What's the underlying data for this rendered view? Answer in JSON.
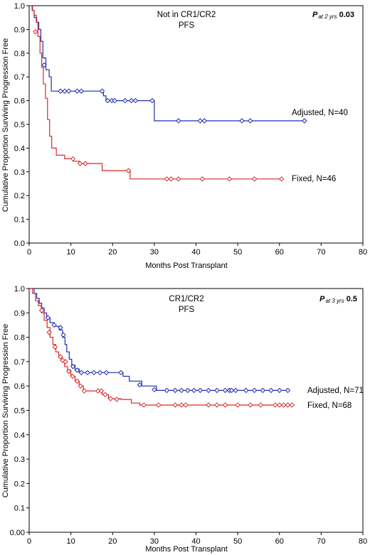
{
  "chart_data": [
    {
      "type": "line",
      "step": true,
      "title": "Not in CR1/CR2",
      "subtitle": "PFS",
      "pvalue": {
        "symbol": "P",
        "subscript": "at 2 yrs",
        "value": "0.03"
      },
      "xlabel": "Months Post Transplant",
      "ylabel": "Cumulative Proportion Surviving Progression Free",
      "xlim": [
        0,
        80
      ],
      "ylim": [
        0,
        1.0
      ],
      "xticks": [
        0,
        10,
        20,
        30,
        40,
        50,
        60,
        70,
        80
      ],
      "yticks": [
        0.0,
        0.1,
        0.2,
        0.3,
        0.4,
        0.5,
        0.6,
        0.7,
        0.8,
        0.9,
        1.0
      ],
      "ytick_labels": [
        "0.0",
        "0.1",
        "0.2",
        "0.3",
        "0.4",
        "0.5",
        "0.6",
        "0.7",
        "0.8",
        "0.9",
        "1.0"
      ],
      "grid": false,
      "series": [
        {
          "name": "Adjusted, N=40",
          "color": "#1f2fb0",
          "steps": [
            [
              0,
              1.0
            ],
            [
              0.8,
              0.98
            ],
            [
              1.2,
              0.95
            ],
            [
              1.8,
              0.93
            ],
            [
              2.3,
              0.9
            ],
            [
              2.8,
              0.85
            ],
            [
              3.3,
              0.78
            ],
            [
              4.0,
              0.73
            ],
            [
              4.8,
              0.7
            ],
            [
              5.3,
              0.64
            ],
            [
              17.8,
              0.62
            ],
            [
              18.4,
              0.6
            ],
            [
              24.0,
              0.6
            ],
            [
              30.0,
              0.515
            ],
            [
              66,
              0.515
            ]
          ],
          "censored": [
            [
              3.6,
              0.75
            ],
            [
              7.5,
              0.64
            ],
            [
              8.5,
              0.64
            ],
            [
              9.5,
              0.64
            ],
            [
              11.5,
              0.64
            ],
            [
              12.5,
              0.64
            ],
            [
              17.5,
              0.64
            ],
            [
              18.8,
              0.6
            ],
            [
              19.8,
              0.6
            ],
            [
              20.5,
              0.6
            ],
            [
              23.0,
              0.6
            ],
            [
              24.5,
              0.6
            ],
            [
              25.5,
              0.6
            ],
            [
              29.5,
              0.6
            ],
            [
              35.8,
              0.515
            ],
            [
              41.0,
              0.515
            ],
            [
              42.0,
              0.515
            ],
            [
              51.0,
              0.515
            ],
            [
              53.0,
              0.515
            ],
            [
              66.0,
              0.515
            ]
          ]
        },
        {
          "name": "Fixed, N=46",
          "color": "#d42a2a",
          "steps": [
            [
              0,
              1.0
            ],
            [
              0.7,
              0.98
            ],
            [
              1.2,
              0.96
            ],
            [
              1.7,
              0.93
            ],
            [
              2.1,
              0.87
            ],
            [
              2.6,
              0.8
            ],
            [
              3.0,
              0.74
            ],
            [
              3.4,
              0.67
            ],
            [
              3.9,
              0.61
            ],
            [
              4.4,
              0.52
            ],
            [
              4.9,
              0.45
            ],
            [
              5.4,
              0.4
            ],
            [
              6.5,
              0.37
            ],
            [
              8.5,
              0.355
            ],
            [
              10.5,
              0.345
            ],
            [
              12.0,
              0.335
            ],
            [
              17.5,
              0.305
            ],
            [
              24.2,
              0.27
            ],
            [
              60.5,
              0.27
            ]
          ],
          "censored": [
            [
              1.5,
              0.89
            ],
            [
              10.5,
              0.355
            ],
            [
              12.2,
              0.335
            ],
            [
              13.5,
              0.335
            ],
            [
              23.8,
              0.305
            ],
            [
              33.0,
              0.27
            ],
            [
              34.0,
              0.27
            ],
            [
              35.8,
              0.27
            ],
            [
              41.5,
              0.27
            ],
            [
              48.0,
              0.27
            ],
            [
              54.0,
              0.27
            ],
            [
              60.5,
              0.27
            ]
          ]
        }
      ]
    },
    {
      "type": "line",
      "step": true,
      "title": "CR1/CR2",
      "subtitle": "PFS",
      "pvalue": {
        "symbol": "P",
        "subscript": "at 3 yrs",
        "value": "0.5"
      },
      "xlabel": "Months Post Transplant",
      "ylabel": "Cumulative Proportion Surviving Progression Free",
      "xlim": [
        0,
        80
      ],
      "ylim": [
        0,
        1.0
      ],
      "xticks": [
        0,
        10,
        20,
        30,
        40,
        50,
        60,
        70,
        80
      ],
      "yticks": [
        0.0,
        0.1,
        0.2,
        0.3,
        0.4,
        0.5,
        0.6,
        0.7,
        0.8,
        0.9,
        1.0
      ],
      "ytick_labels": [
        "0.00",
        "0.1",
        "0.2",
        "0.3",
        "0.4",
        "0.5",
        "0.6",
        "0.7",
        "0.8",
        "0.9",
        "1.0"
      ],
      "grid": false,
      "series": [
        {
          "name": "Adjusted, N=71",
          "color": "#1f2fb0",
          "steps": [
            [
              0,
              1.0
            ],
            [
              1.2,
              0.98
            ],
            [
              1.8,
              0.96
            ],
            [
              2.4,
              0.94
            ],
            [
              3.0,
              0.92
            ],
            [
              3.6,
              0.9
            ],
            [
              4.2,
              0.88
            ],
            [
              5.0,
              0.86
            ],
            [
              6.0,
              0.845
            ],
            [
              7.2,
              0.83
            ],
            [
              8.0,
              0.8
            ],
            [
              8.6,
              0.77
            ],
            [
              9.0,
              0.74
            ],
            [
              9.6,
              0.71
            ],
            [
              10.2,
              0.685
            ],
            [
              11.0,
              0.67
            ],
            [
              12.0,
              0.655
            ],
            [
              22.5,
              0.64
            ],
            [
              24.0,
              0.62
            ],
            [
              27.0,
              0.6
            ],
            [
              30.5,
              0.582
            ],
            [
              62,
              0.582
            ]
          ],
          "censored": [
            [
              4.5,
              0.88
            ],
            [
              6.0,
              0.85
            ],
            [
              7.5,
              0.84
            ],
            [
              8.2,
              0.81
            ],
            [
              10.5,
              0.68
            ],
            [
              11.5,
              0.665
            ],
            [
              12.5,
              0.655
            ],
            [
              14.0,
              0.655
            ],
            [
              15.5,
              0.655
            ],
            [
              17.0,
              0.655
            ],
            [
              18.5,
              0.655
            ],
            [
              22.0,
              0.655
            ],
            [
              26.5,
              0.605
            ],
            [
              30.0,
              0.585
            ],
            [
              33.0,
              0.582
            ],
            [
              35.0,
              0.582
            ],
            [
              36.5,
              0.582
            ],
            [
              38.0,
              0.582
            ],
            [
              39.5,
              0.582
            ],
            [
              41.0,
              0.582
            ],
            [
              43.0,
              0.582
            ],
            [
              45.0,
              0.582
            ],
            [
              47.0,
              0.582
            ],
            [
              48.0,
              0.582
            ],
            [
              48.5,
              0.582
            ],
            [
              49.5,
              0.582
            ],
            [
              52.0,
              0.582
            ],
            [
              54.0,
              0.582
            ],
            [
              56.0,
              0.582
            ],
            [
              58.0,
              0.582
            ],
            [
              60.0,
              0.582
            ],
            [
              62.0,
              0.582
            ]
          ]
        },
        {
          "name": "Fixed, N=68",
          "color": "#d42a2a",
          "steps": [
            [
              0,
              1.0
            ],
            [
              0.8,
              0.98
            ],
            [
              1.5,
              0.95
            ],
            [
              2.2,
              0.93
            ],
            [
              2.9,
              0.9
            ],
            [
              3.6,
              0.87
            ],
            [
              4.3,
              0.84
            ],
            [
              5.0,
              0.8
            ],
            [
              5.7,
              0.77
            ],
            [
              6.4,
              0.74
            ],
            [
              7.1,
              0.72
            ],
            [
              7.8,
              0.7
            ],
            [
              8.5,
              0.68
            ],
            [
              9.2,
              0.665
            ],
            [
              10.0,
              0.64
            ],
            [
              11.0,
              0.62
            ],
            [
              12.0,
              0.6
            ],
            [
              13.0,
              0.58
            ],
            [
              17.5,
              0.565
            ],
            [
              19.0,
              0.548
            ],
            [
              22.0,
              0.545
            ],
            [
              24.5,
              0.53
            ],
            [
              26.5,
              0.522
            ],
            [
              63,
              0.522
            ]
          ],
          "censored": [
            [
              3.0,
              0.91
            ],
            [
              4.8,
              0.82
            ],
            [
              6.2,
              0.76
            ],
            [
              7.5,
              0.72
            ],
            [
              8.0,
              0.705
            ],
            [
              8.7,
              0.7
            ],
            [
              9.5,
              0.66
            ],
            [
              10.4,
              0.64
            ],
            [
              11.5,
              0.62
            ],
            [
              12.3,
              0.6
            ],
            [
              13.2,
              0.58
            ],
            [
              16.5,
              0.58
            ],
            [
              17.3,
              0.58
            ],
            [
              18.2,
              0.565
            ],
            [
              19.5,
              0.548
            ],
            [
              21.0,
              0.545
            ],
            [
              27.5,
              0.522
            ],
            [
              31.0,
              0.522
            ],
            [
              35.0,
              0.522
            ],
            [
              36.5,
              0.522
            ],
            [
              37.5,
              0.522
            ],
            [
              43.0,
              0.522
            ],
            [
              45.0,
              0.522
            ],
            [
              47.0,
              0.522
            ],
            [
              50.0,
              0.522
            ],
            [
              53.0,
              0.522
            ],
            [
              55.5,
              0.522
            ],
            [
              59.0,
              0.522
            ],
            [
              60.0,
              0.522
            ],
            [
              61.0,
              0.522
            ],
            [
              62.0,
              0.522
            ],
            [
              63.0,
              0.522
            ]
          ]
        }
      ]
    }
  ]
}
